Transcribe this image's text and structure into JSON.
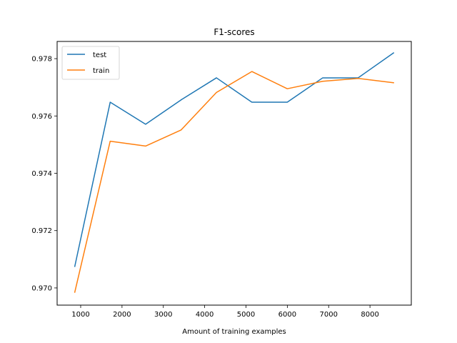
{
  "chart_data": {
    "type": "line",
    "title": "F1-scores",
    "xlabel": "Amount of training examples",
    "ylabel": "",
    "xlim": [
      430,
      9000
    ],
    "ylim": [
      0.9694,
      0.9786
    ],
    "xticks": [
      1000,
      2000,
      3000,
      4000,
      5000,
      6000,
      7000,
      8000
    ],
    "yticks": [
      0.97,
      0.972,
      0.974,
      0.976,
      0.978
    ],
    "xtick_labels": [
      "1000",
      "2000",
      "3000",
      "4000",
      "5000",
      "6000",
      "7000",
      "8000"
    ],
    "ytick_labels": [
      "0.970",
      "0.972",
      "0.974",
      "0.976",
      "0.978"
    ],
    "grid": false,
    "legend_position": "top-left",
    "x": [
      857,
      1714,
      2571,
      3428,
      4285,
      5142,
      5999,
      6856,
      7713,
      8570
    ],
    "series": [
      {
        "name": "test",
        "color": "#1f77b4",
        "values": [
          0.97075,
          0.97648,
          0.97571,
          0.97656,
          0.97733,
          0.97648,
          0.97648,
          0.97733,
          0.97733,
          0.9782
        ]
      },
      {
        "name": "train",
        "color": "#ff7f0e",
        "values": [
          0.96985,
          0.97512,
          0.97495,
          0.97551,
          0.97682,
          0.97755,
          0.97695,
          0.97721,
          0.97731,
          0.97716
        ]
      }
    ]
  }
}
